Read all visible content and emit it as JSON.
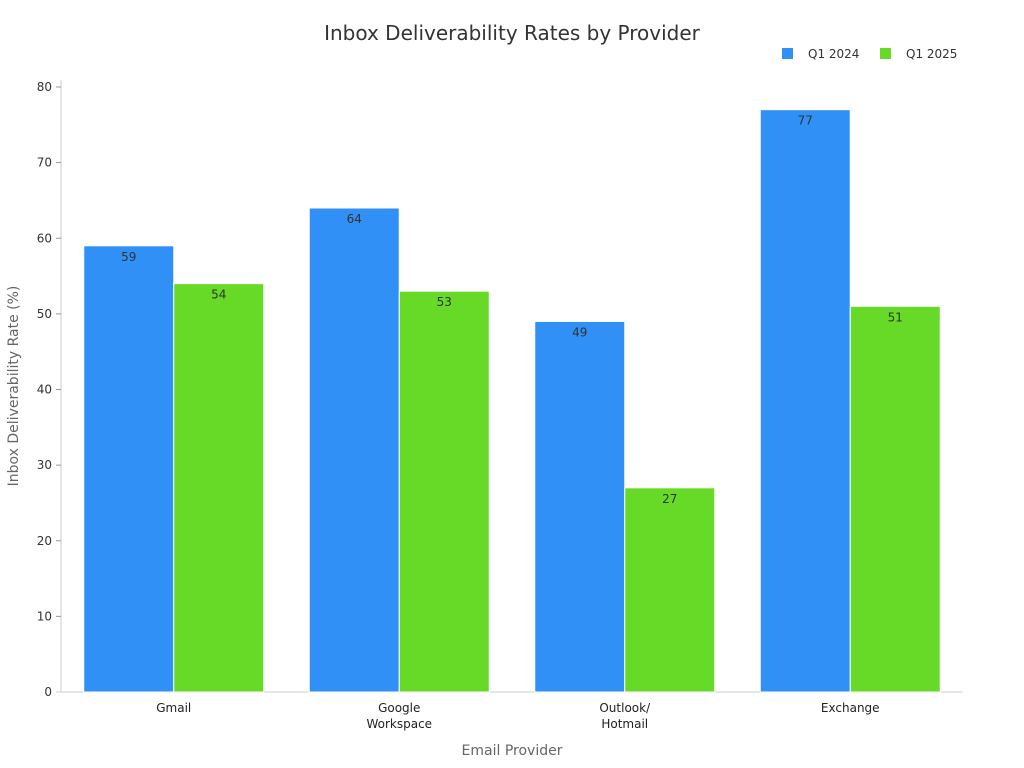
{
  "chart_data": {
    "type": "bar",
    "title": "Inbox Deliverability Rates by Provider",
    "xlabel": "Email Provider",
    "ylabel": "Inbox Deliverability Rate (%)",
    "categories": [
      [
        "Gmail"
      ],
      [
        "Google",
        "Workspace"
      ],
      [
        "Outlook/",
        "Hotmail"
      ],
      [
        "Exchange"
      ]
    ],
    "series": [
      {
        "name": "Q1 2024",
        "values": [
          59,
          64,
          49,
          77
        ],
        "color": "#3090f5"
      },
      {
        "name": "Q1 2025",
        "values": [
          54,
          53,
          27,
          51
        ],
        "color": "#66da26"
      }
    ],
    "ylim": [
      0,
      80
    ],
    "yticks": [
      0,
      10,
      20,
      30,
      40,
      50,
      60,
      70,
      80
    ],
    "grid": false,
    "legend_position": "top-right",
    "data_labels": true
  }
}
